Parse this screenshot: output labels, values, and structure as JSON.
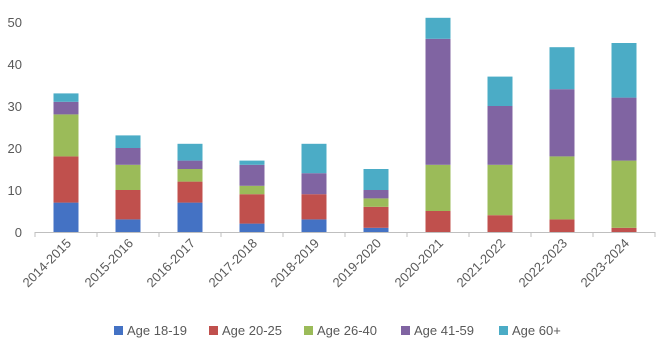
{
  "chart_data": {
    "type": "bar",
    "stacked": true,
    "categories": [
      "2014-2015",
      "2015-2016",
      "2016-2017",
      "2017-2018",
      "2018-2019",
      "2019-2020",
      "2020-2021",
      "2021-2022",
      "2022-2023",
      "2023-2024"
    ],
    "series": [
      {
        "name": "Age 18-19",
        "color": "#4472C4",
        "values": [
          7,
          3,
          7,
          2,
          3,
          1,
          0,
          0,
          0,
          0
        ]
      },
      {
        "name": "Age 20-25",
        "color": "#C0504D",
        "values": [
          11,
          7,
          5,
          7,
          6,
          5,
          5,
          4,
          3,
          1
        ]
      },
      {
        "name": "Age 26-40",
        "color": "#9BBB59",
        "values": [
          10,
          6,
          3,
          2,
          0,
          2,
          11,
          12,
          15,
          16
        ]
      },
      {
        "name": "Age 41-59",
        "color": "#8064A2",
        "values": [
          3,
          4,
          2,
          5,
          5,
          2,
          30,
          14,
          16,
          15
        ]
      },
      {
        "name": "Age 60+",
        "color": "#4BACC6",
        "values": [
          2,
          3,
          4,
          1,
          7,
          5,
          5,
          7,
          10,
          13
        ]
      }
    ],
    "ylim": [
      0,
      50
    ],
    "yticks": [
      0,
      10,
      20,
      30,
      40,
      50
    ],
    "grid": false,
    "legend": "bottom",
    "title": "",
    "xlabel": "",
    "ylabel": ""
  }
}
